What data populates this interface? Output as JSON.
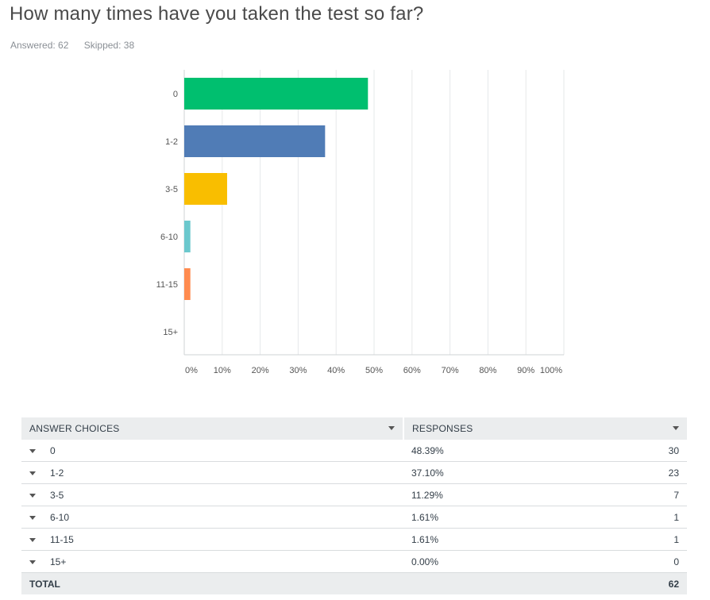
{
  "question": {
    "title": "How many times have you taken the test so far?",
    "answered": "Answered: 62",
    "skipped": "Skipped: 38"
  },
  "chart_data": {
    "type": "bar",
    "orientation": "horizontal",
    "categories": [
      "0",
      "1-2",
      "3-5",
      "6-10",
      "11-15",
      "15+"
    ],
    "values": [
      48.39,
      37.1,
      11.29,
      1.61,
      1.61,
      0.0
    ],
    "colors": [
      "#00bf6f",
      "#507cb6",
      "#f9be00",
      "#6bc8cd",
      "#ff8b4f",
      "#7d5e90"
    ],
    "xticks": [
      "0%",
      "10%",
      "20%",
      "30%",
      "40%",
      "50%",
      "60%",
      "70%",
      "80%",
      "90%",
      "100%"
    ],
    "xlim": [
      0,
      100
    ],
    "grid": true,
    "title": "",
    "xlabel": "",
    "ylabel": ""
  },
  "table": {
    "headers": {
      "choices": "ANSWER CHOICES",
      "responses": "RESPONSES"
    },
    "rows": [
      {
        "choice": "0",
        "percent": "48.39%",
        "count": "30"
      },
      {
        "choice": "1-2",
        "percent": "37.10%",
        "count": "23"
      },
      {
        "choice": "3-5",
        "percent": "11.29%",
        "count": "7"
      },
      {
        "choice": "6-10",
        "percent": "1.61%",
        "count": "1"
      },
      {
        "choice": "11-15",
        "percent": "1.61%",
        "count": "1"
      },
      {
        "choice": "15+",
        "percent": "0.00%",
        "count": "0"
      }
    ],
    "total_label": "TOTAL",
    "total_count": "62"
  }
}
